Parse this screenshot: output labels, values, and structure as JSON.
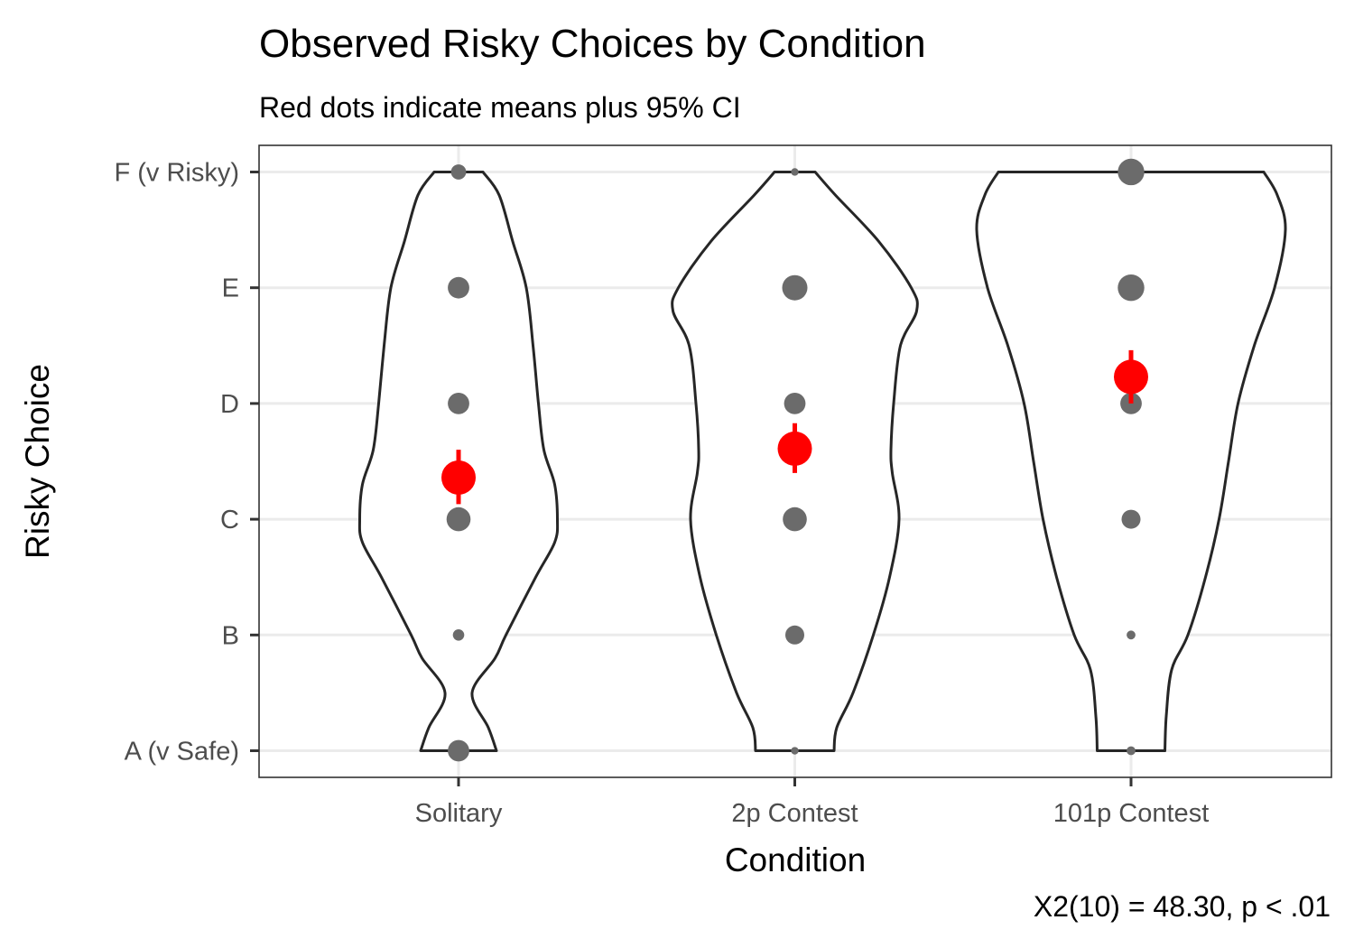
{
  "chart_data": {
    "type": "violin",
    "title": "Observed Risky Choices by Condition",
    "subtitle": "Red dots indicate means plus 95% CI",
    "xlabel": "Condition",
    "ylabel": "Risky Choice",
    "caption": "X2(10) = 48.30, p < .01",
    "categories": [
      "Solitary",
      "2p Contest",
      "101p Contest"
    ],
    "y_levels": [
      "A (v Safe)",
      "B",
      "C",
      "D",
      "E",
      "F (v Risky)"
    ],
    "ylim": [
      0.77,
      6.23
    ],
    "grid": true,
    "colors": {
      "count_points": "#6b6b6b",
      "mean_points": "#ff0000",
      "violin_outline": "#262626"
    },
    "series": [
      {
        "category": "Solitary",
        "point_relative_size": [
          0.85,
          0.45,
          0.95,
          0.85,
          0.85,
          0.6
        ],
        "violin_halfwidth": [
          [
            1.0,
            0.28
          ],
          [
            1.2,
            0.22
          ],
          [
            1.5,
            0.1
          ],
          [
            1.8,
            0.27
          ],
          [
            2.0,
            0.35
          ],
          [
            2.5,
            0.57
          ],
          [
            2.8,
            0.71
          ],
          [
            3.0,
            0.73
          ],
          [
            3.3,
            0.71
          ],
          [
            3.6,
            0.63
          ],
          [
            4.0,
            0.59
          ],
          [
            4.5,
            0.55
          ],
          [
            5.0,
            0.5
          ],
          [
            5.4,
            0.4
          ],
          [
            5.8,
            0.3
          ],
          [
            6.0,
            0.18
          ]
        ],
        "mean": 3.36,
        "ci": [
          3.13,
          3.6
        ]
      },
      {
        "category": "2p Contest",
        "point_relative_size": [
          0.3,
          0.75,
          0.95,
          0.85,
          1.0,
          0.3
        ],
        "violin_halfwidth": [
          [
            1.0,
            0.29
          ],
          [
            1.2,
            0.31
          ],
          [
            1.5,
            0.43
          ],
          [
            2.0,
            0.58
          ],
          [
            2.5,
            0.7
          ],
          [
            3.0,
            0.77
          ],
          [
            3.4,
            0.72
          ],
          [
            3.6,
            0.71
          ],
          [
            4.0,
            0.73
          ],
          [
            4.5,
            0.78
          ],
          [
            4.8,
            0.9
          ],
          [
            5.0,
            0.86
          ],
          [
            5.4,
            0.62
          ],
          [
            5.8,
            0.3
          ],
          [
            6.0,
            0.15
          ]
        ],
        "mean": 3.61,
        "ci": [
          3.4,
          3.83
        ]
      },
      {
        "category": "101p Contest",
        "point_relative_size": [
          0.35,
          0.35,
          0.75,
          0.85,
          1.05,
          1.05
        ],
        "violin_halfwidth": [
          [
            1.0,
            0.25
          ],
          [
            1.3,
            0.26
          ],
          [
            1.7,
            0.3
          ],
          [
            2.0,
            0.42
          ],
          [
            2.5,
            0.55
          ],
          [
            3.0,
            0.65
          ],
          [
            3.5,
            0.72
          ],
          [
            4.0,
            0.79
          ],
          [
            4.5,
            0.91
          ],
          [
            5.0,
            1.06
          ],
          [
            5.5,
            1.14
          ],
          [
            5.8,
            1.08
          ],
          [
            6.0,
            0.98
          ]
        ],
        "mean": 4.23,
        "ci": [
          4.0,
          4.46
        ]
      }
    ]
  }
}
